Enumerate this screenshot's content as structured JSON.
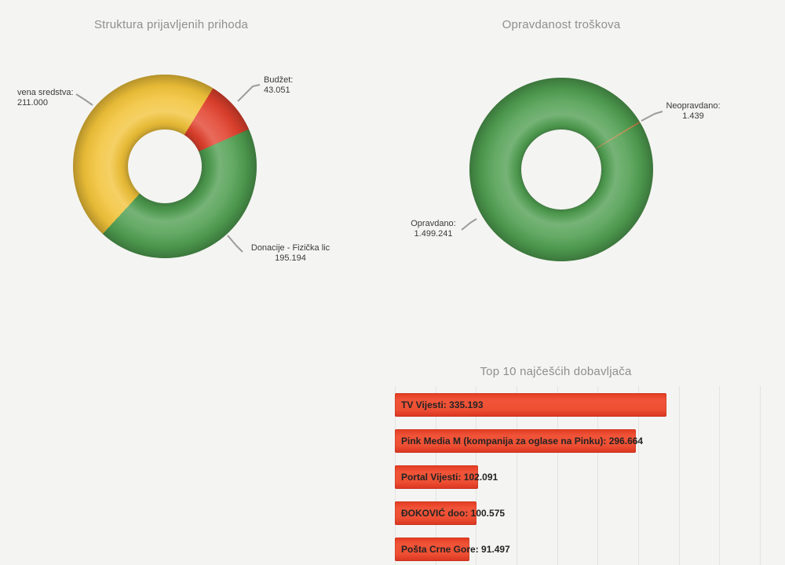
{
  "page": {
    "background": "#f4f4f2",
    "title_color": "#8f8f8f"
  },
  "chart_data": [
    {
      "type": "pie",
      "subtype": "donut",
      "title": "Struktura prijavljenih prihoda",
      "legend_position": "callout-labels",
      "rotation_deg": 222.6,
      "segments": [
        {
          "label": "vena sredstva:",
          "value": 211000,
          "value_text": "211.000",
          "color": "#f2c339"
        },
        {
          "label": "Budžet:",
          "value": 43051,
          "value_text": "43.051",
          "color": "#e2412d"
        },
        {
          "label": "Donacije - Fizička lic",
          "value": 195194,
          "value_text": "195.194",
          "color": "#4f9e50"
        }
      ]
    },
    {
      "type": "pie",
      "subtype": "donut",
      "title": "Opravdanost troškova",
      "legend_position": "callout-labels",
      "rotation_deg": 59.3,
      "segments": [
        {
          "label": "Opravdano:",
          "value": 1499241,
          "value_text": "1.499.241",
          "color": "#4f9e50"
        },
        {
          "label": "Neopravdano:",
          "value": 1439,
          "value_text": "1.439",
          "color": "#c98a4f"
        }
      ]
    },
    {
      "type": "bar",
      "orientation": "horizontal",
      "title": "Top 10 najčešćih dobavljača",
      "grid": true,
      "axis": {
        "xmin": 0,
        "xmax": 450000,
        "gridline_step": 50000
      },
      "bar_color": "#e8432b",
      "bars": [
        {
          "label": "TV Vijesti",
          "value": 335193,
          "value_text": "335.193"
        },
        {
          "label": "Pink Media M (kompanija za oglase na Pinku)",
          "value": 296664,
          "value_text": "296.664"
        },
        {
          "label": "Portal Vijesti",
          "value": 102091,
          "value_text": "102.091"
        },
        {
          "label": "ĐOKOVIĆ doo",
          "value": 100575,
          "value_text": "100.575"
        },
        {
          "label": "Pošta Crne Gore",
          "value": 91497,
          "value_text": "91.497"
        }
      ]
    }
  ]
}
